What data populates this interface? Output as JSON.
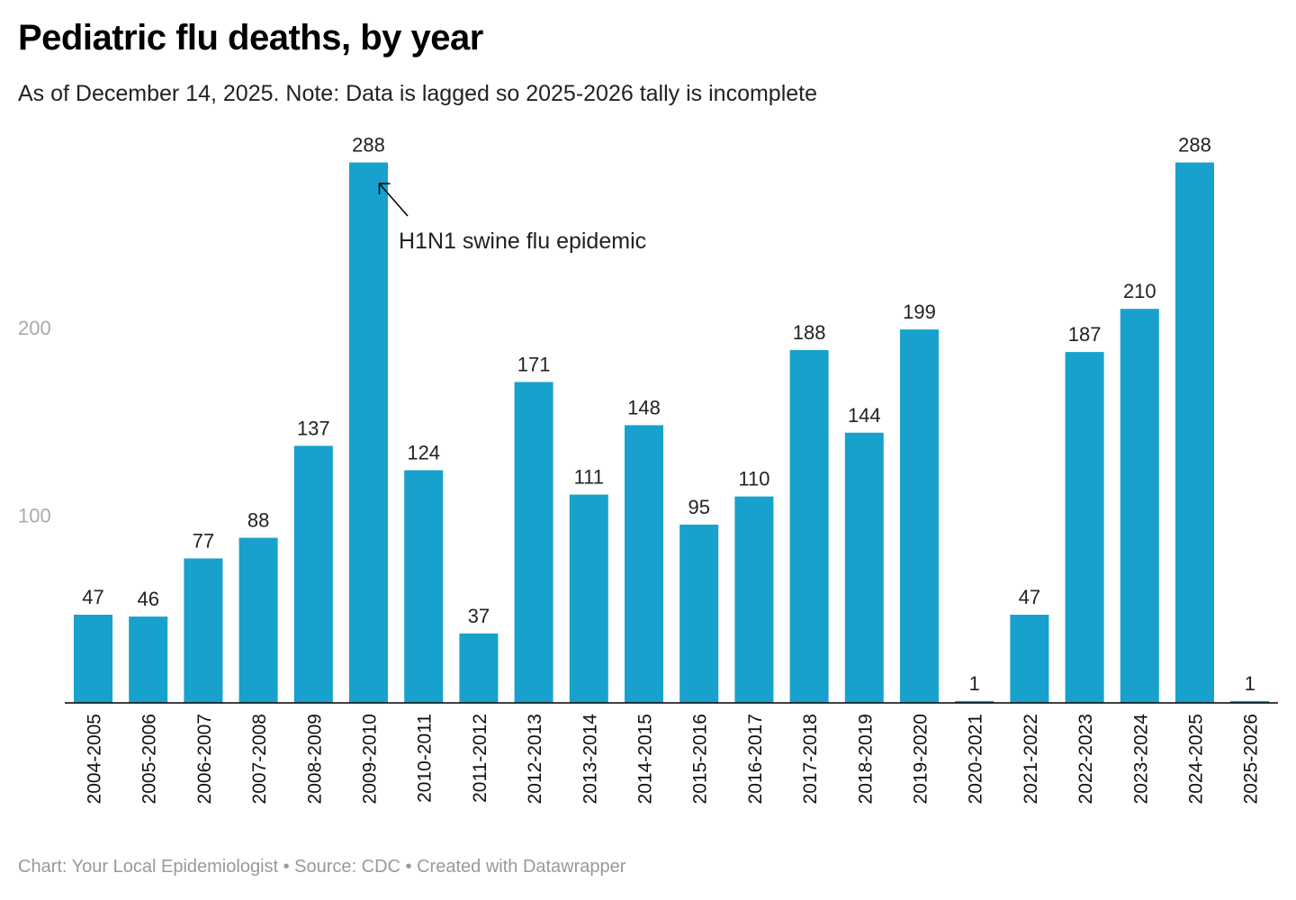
{
  "chart_data": {
    "type": "bar",
    "title": "Pediatric flu deaths, by year",
    "subtitle": "As of December 14, 2025. Note: Data is lagged so 2025-2026 tally is incomplete",
    "categories": [
      "2004-2005",
      "2005-2006",
      "2006-2007",
      "2007-2008",
      "2008-2009",
      "2009-2010",
      "2010-2011",
      "2011-2012",
      "2012-2013",
      "2013-2014",
      "2014-2015",
      "2015-2016",
      "2016-2017",
      "2017-2018",
      "2018-2019",
      "2019-2020",
      "2020-2021",
      "2021-2022",
      "2022-2023",
      "2023-2024",
      "2024-2025",
      "2025-2026"
    ],
    "values": [
      47,
      46,
      77,
      88,
      137,
      288,
      124,
      37,
      171,
      111,
      148,
      95,
      110,
      188,
      144,
      199,
      1,
      47,
      187,
      210,
      288,
      1
    ],
    "xlabel": "",
    "ylabel": "",
    "ylim": [
      0,
      288
    ],
    "yticks": [
      100,
      200
    ],
    "bar_color": "#18a1cd",
    "annotations": [
      {
        "text": "H1N1 swine flu epidemic",
        "category": "2009-2010"
      }
    ],
    "footer": "Chart: Your Local Epidemiologist • Source: CDC • Created with Datawrapper"
  }
}
